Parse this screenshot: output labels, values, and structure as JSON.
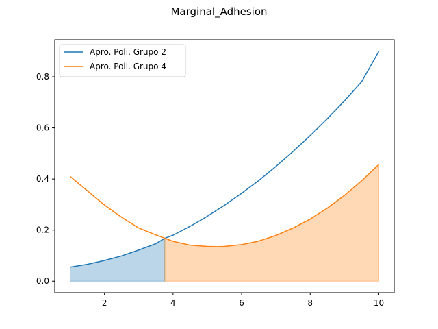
{
  "chart_data": {
    "type": "line",
    "title": "Marginal_Adhesion",
    "xlabel": "",
    "ylabel": "",
    "xlim": [
      0.55,
      10.45
    ],
    "ylim": [
      -0.045,
      0.945
    ],
    "xticks": [
      2,
      4,
      6,
      8,
      10
    ],
    "yticks": [
      0.0,
      0.2,
      0.4,
      0.6,
      0.8
    ],
    "xtick_labels": [
      "2",
      "4",
      "6",
      "8",
      "10"
    ],
    "ytick_labels": [
      "0.0",
      "0.2",
      "0.4",
      "0.6",
      "0.8"
    ],
    "legend_position": "top-left",
    "grid": false,
    "series": [
      {
        "name": "Apro. Poli. Grupo 2",
        "color": "#1f77b4",
        "x": [
          1,
          1.5,
          2,
          2.5,
          3,
          3.5,
          3.76,
          4,
          4.5,
          5,
          5.5,
          6,
          6.5,
          7,
          7.5,
          8,
          8.5,
          9,
          9.5,
          10
        ],
        "y": [
          0.055,
          0.066,
          0.081,
          0.099,
          0.122,
          0.147,
          0.168,
          0.18,
          0.215,
          0.254,
          0.297,
          0.344,
          0.394,
          0.449,
          0.508,
          0.57,
          0.636,
          0.706,
          0.781,
          0.899
        ]
      },
      {
        "name": "Apro. Poli. Grupo 4",
        "color": "#ff7f0e",
        "x": [
          1,
          1.5,
          2,
          2.5,
          3,
          3.5,
          3.76,
          4,
          4.5,
          5,
          5.3,
          5.5,
          6,
          6.5,
          7,
          7.5,
          8,
          8.5,
          9,
          9.5,
          10
        ],
        "y": [
          0.41,
          0.354,
          0.298,
          0.25,
          0.208,
          0.181,
          0.168,
          0.156,
          0.141,
          0.136,
          0.135,
          0.136,
          0.143,
          0.157,
          0.179,
          0.208,
          0.243,
          0.286,
          0.336,
          0.393,
          0.457
        ]
      }
    ],
    "fill_regions": [
      {
        "series_index": 0,
        "color": "#1f77b4",
        "x_range": [
          1,
          3.76
        ],
        "opacity": 0.3
      },
      {
        "series_index": 1,
        "color": "#ff7f0e",
        "x_range": [
          3.76,
          10
        ],
        "opacity": 0.3
      }
    ]
  }
}
